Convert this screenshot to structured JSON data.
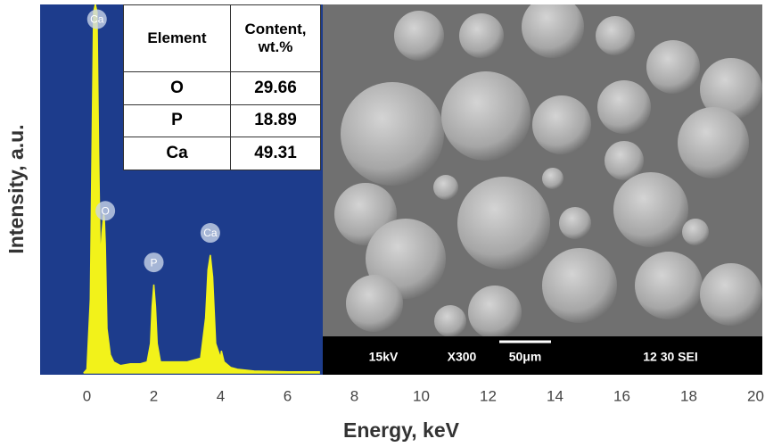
{
  "chart_data": {
    "type": "area",
    "x_label": "Energy, keV",
    "y_label": "Intensity, a.u.",
    "color": "#f2f21a",
    "background": "#1d3c8c",
    "x": [
      -0.1,
      0.0,
      0.1,
      0.2,
      0.25,
      0.3,
      0.35,
      0.4,
      0.45,
      0.5,
      0.52,
      0.55,
      0.6,
      0.7,
      0.8,
      1.0,
      1.3,
      1.6,
      1.8,
      1.9,
      1.95,
      2.0,
      2.05,
      2.1,
      2.2,
      2.5,
      3.0,
      3.4,
      3.55,
      3.62,
      3.69,
      3.76,
      3.85,
      4.0,
      4.02,
      4.1,
      4.3,
      4.5,
      5.0,
      6.0,
      6.95
    ],
    "values": [
      0,
      1,
      20,
      98,
      100,
      98,
      60,
      30,
      38,
      43,
      42,
      35,
      12,
      5,
      3,
      2,
      2.5,
      2.5,
      3,
      8,
      18,
      24,
      18,
      8,
      3,
      3,
      3,
      4,
      15,
      28,
      32,
      26,
      8,
      4,
      6,
      3,
      1.5,
      1,
      0.5,
      0.3,
      0.3
    ],
    "xlim": [
      -1.4,
      20.2
    ],
    "ylim": [
      0,
      100
    ],
    "xticks": [
      0,
      2,
      4,
      6,
      8,
      10,
      12,
      14,
      16,
      18,
      20
    ],
    "annotations": [
      {
        "text": "Ca",
        "x": 0.3,
        "y": 96
      },
      {
        "text": "O",
        "x": 0.55,
        "y": 44
      },
      {
        "text": "P",
        "x": 2.0,
        "y": 30
      },
      {
        "text": "Ca",
        "x": 3.69,
        "y": 38
      }
    ]
  },
  "table": {
    "header": [
      "Element",
      "Content, wt.%"
    ],
    "rows": [
      [
        "O",
        29.66
      ],
      [
        "P",
        18.89
      ],
      [
        "Ca",
        49.31
      ]
    ]
  },
  "micrograph": {
    "labels": [
      "15kV",
      "X300",
      "50μm",
      "12 30 SEI"
    ]
  }
}
